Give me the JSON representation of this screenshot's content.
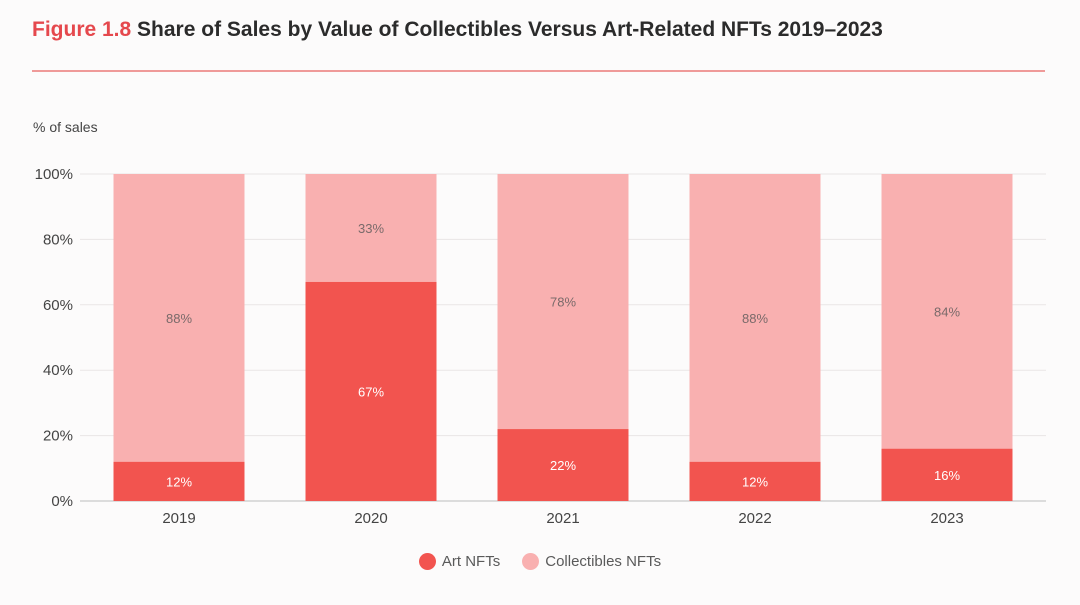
{
  "figure": {
    "label": "Figure 1.8",
    "title": "Share of Sales by Value of Collectibles Versus Art-Related NFTs 2019–2023"
  },
  "colors": {
    "accent": "#e5484d",
    "art": "#f2544f",
    "collectibles": "#f9b0b0",
    "grid": "#e9e6e6",
    "rule": "#ef9a99"
  },
  "legend": {
    "art_label": "Art NFTs",
    "collectibles_label": "Collectibles NFTs"
  },
  "chart_data": {
    "type": "bar",
    "stacked": true,
    "title": "Share of Sales by Value of Collectibles Versus Art-Related NFTs 2019–2023",
    "ylabel": "% of sales",
    "xlabel": "",
    "ylim": [
      0,
      100
    ],
    "yticks": [
      0,
      20,
      40,
      60,
      80,
      100
    ],
    "ytick_labels": [
      "0%",
      "20%",
      "40%",
      "60%",
      "80%",
      "100%"
    ],
    "categories": [
      "2019",
      "2020",
      "2021",
      "2022",
      "2023"
    ],
    "series": [
      {
        "name": "Art NFTs",
        "values": [
          12,
          67,
          22,
          12,
          16
        ],
        "labels": [
          "12%",
          "67%",
          "22%",
          "12%",
          "16%"
        ]
      },
      {
        "name": "Collectibles NFTs",
        "values": [
          88,
          33,
          78,
          88,
          84
        ],
        "labels": [
          "88%",
          "33%",
          "78%",
          "88%",
          "84%"
        ]
      }
    ],
    "grid": true,
    "legend_position": "bottom-center"
  }
}
